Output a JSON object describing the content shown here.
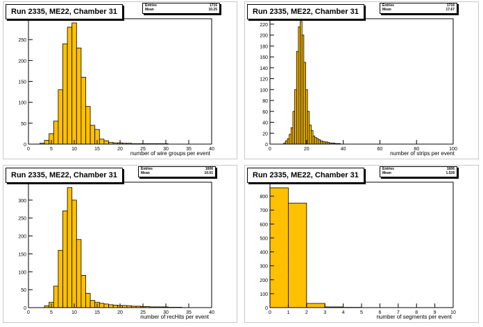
{
  "chart_data": [
    {
      "type": "bar",
      "title": "Run 2335, ME22, Chamber 31",
      "xlabel": "number of wire groups per event",
      "ylabel": "",
      "xlim": [
        0,
        40
      ],
      "ylim": [
        0,
        300
      ],
      "xticks": [
        0,
        5,
        10,
        15,
        20,
        25,
        30,
        35,
        40
      ],
      "yticks": [
        0,
        50,
        100,
        150,
        200,
        250,
        300
      ],
      "bin_width": 1,
      "bins_x": [
        3,
        4,
        5,
        6,
        7,
        8,
        9,
        10,
        11,
        12,
        13,
        14,
        15,
        16,
        17,
        18,
        19,
        20,
        21,
        22,
        23,
        24,
        25,
        26,
        27,
        28,
        29,
        30
      ],
      "values": [
        2,
        9,
        25,
        55,
        130,
        240,
        280,
        290,
        230,
        160,
        90,
        45,
        35,
        12,
        8,
        4,
        3,
        3,
        2,
        2,
        1,
        1,
        1,
        1,
        1,
        1,
        1,
        1
      ],
      "stats": {
        "entries_label": "Entries",
        "entries": "1716",
        "mean_label": "Mean",
        "mean": "10.25"
      },
      "legend": "none",
      "grid": false,
      "fill": "#ffc000"
    },
    {
      "type": "bar",
      "title": "Run 2335, ME22, Chamber 31",
      "xlabel": "number of strips per event",
      "ylabel": "",
      "xlim": [
        0,
        100
      ],
      "ylim": [
        0,
        230
      ],
      "xticks": [
        0,
        20,
        40,
        60,
        80,
        100
      ],
      "yticks": [
        0,
        20,
        40,
        60,
        80,
        100,
        120,
        140,
        160,
        180,
        200,
        220
      ],
      "bin_width": 1,
      "bins_x": [
        8,
        9,
        10,
        11,
        12,
        13,
        14,
        15,
        16,
        17,
        18,
        19,
        20,
        21,
        22,
        23,
        24,
        25,
        26,
        27,
        28,
        29,
        30,
        31,
        32,
        33,
        34,
        35,
        36,
        37,
        38
      ],
      "values": [
        2,
        6,
        10,
        18,
        30,
        60,
        100,
        170,
        215,
        225,
        200,
        150,
        100,
        60,
        35,
        25,
        15,
        12,
        10,
        8,
        6,
        5,
        4,
        4,
        3,
        2,
        2,
        2,
        1,
        1,
        1
      ],
      "stats": {
        "entries_label": "Entries",
        "entries": "1716",
        "mean_label": "Mean",
        "mean": "17.67"
      },
      "legend": "none",
      "grid": false,
      "fill": "#ffc000"
    },
    {
      "type": "bar",
      "title": "Run 2335, ME22, Chamber 31",
      "xlabel": "number of recHits per event",
      "ylabel": "",
      "xlim": [
        0,
        40
      ],
      "ylim": [
        0,
        350
      ],
      "xticks": [
        0,
        5,
        10,
        15,
        20,
        25,
        30,
        35,
        40
      ],
      "yticks": [
        0,
        50,
        100,
        150,
        200,
        250,
        300,
        350
      ],
      "bin_width": 1,
      "bins_x": [
        4,
        5,
        6,
        7,
        8,
        9,
        10,
        11,
        12,
        13,
        14,
        15,
        16,
        17,
        18,
        19,
        20,
        21,
        22,
        23,
        24,
        25,
        26,
        27,
        28,
        29,
        30,
        31,
        32,
        33
      ],
      "values": [
        5,
        15,
        60,
        160,
        270,
        335,
        300,
        190,
        90,
        40,
        20,
        15,
        12,
        10,
        8,
        7,
        6,
        6,
        5,
        4,
        4,
        3,
        3,
        2,
        2,
        2,
        2,
        1,
        1,
        1
      ],
      "stats": {
        "entries_label": "Entries",
        "entries": "1606",
        "mean_label": "Mean",
        "mean": "10.01"
      },
      "legend": "none",
      "grid": false,
      "fill": "#ffc000"
    },
    {
      "type": "bar",
      "title": "Run 2335, ME22, Chamber 31",
      "xlabel": "number of segments per event",
      "ylabel": "",
      "xlim": [
        0,
        10
      ],
      "ylim": [
        0,
        900
      ],
      "xticks": [
        0,
        1,
        2,
        3,
        4,
        5,
        6,
        7,
        8,
        9,
        10
      ],
      "yticks": [
        0,
        100,
        200,
        300,
        400,
        500,
        600,
        700,
        800,
        900
      ],
      "bin_width": 1,
      "bins_x": [
        0.5,
        1.5,
        2.5,
        3.5,
        4.5
      ],
      "values": [
        860,
        750,
        30,
        5,
        2
      ],
      "stats": {
        "entries_label": "Entries",
        "entries": "1606",
        "mean_label": "Mean",
        "mean": "1.528"
      },
      "legend": "none",
      "grid": false,
      "fill": "#ffc000"
    }
  ]
}
